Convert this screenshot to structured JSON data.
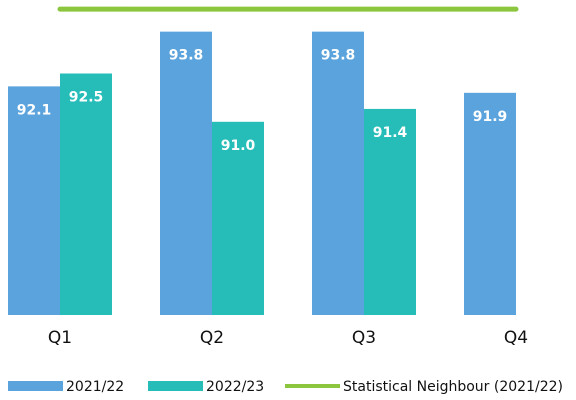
{
  "chart_data": {
    "type": "bar",
    "categories": [
      "Q1",
      "Q2",
      "Q3",
      "Q4"
    ],
    "ylim": [
      85,
      95
    ],
    "series": [
      {
        "name": "2021/22",
        "color": "#5ba3dc",
        "values": [
          92.1,
          93.8,
          93.8,
          91.9
        ],
        "value_labels": [
          "92.1",
          "93.8",
          "93.8",
          "91.9"
        ]
      },
      {
        "name": "2022/23",
        "color": "#26bdb9",
        "values": [
          92.5,
          91,
          91.4,
          null
        ],
        "value_labels": [
          "92.5",
          "91.0",
          "91.4",
          null
        ]
      },
      {
        "name": "Statistical Neighbour (2021/22)",
        "type": "line",
        "color": "#8cc63f",
        "values": [
          94.5,
          94.5,
          94.5,
          94.5
        ]
      }
    ]
  }
}
